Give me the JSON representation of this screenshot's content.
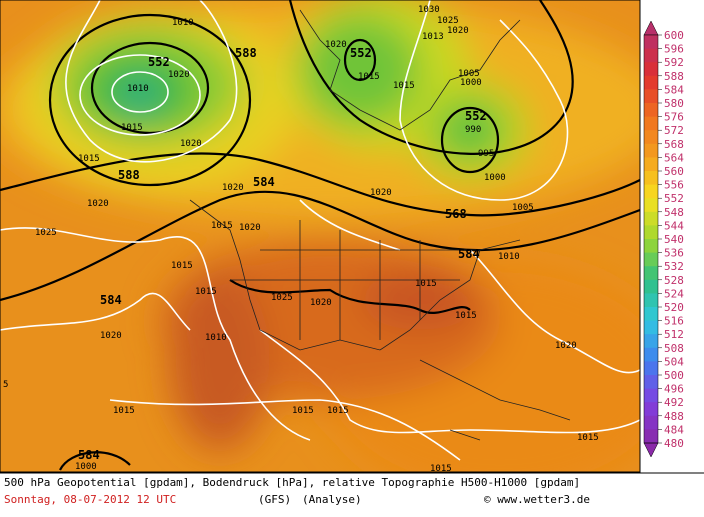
{
  "colorbar": {
    "labels": [
      600,
      596,
      592,
      588,
      584,
      580,
      576,
      572,
      568,
      564,
      560,
      556,
      552,
      548,
      544,
      540,
      536,
      532,
      528,
      524,
      520,
      516,
      512,
      508,
      504,
      500,
      496,
      492,
      488,
      484,
      480
    ]
  },
  "map_labels": {
    "bold": [
      "552",
      "588",
      "588",
      "584",
      "552",
      "552",
      "568",
      "584",
      "584",
      "584"
    ],
    "pressure": [
      "1010",
      "1020",
      "1010",
      "1015",
      "1020",
      "1015",
      "1020",
      "1025",
      "1020",
      "1030",
      "1025",
      "1013",
      "1020",
      "1020",
      "1015",
      "1015",
      "1005",
      "1000",
      "990",
      "995",
      "1000",
      "1005",
      "1020",
      "1015",
      "1020",
      "1015",
      "1015",
      "1025",
      "1020",
      "1015",
      "1015",
      "1010",
      "1020",
      "1010",
      "1020",
      "1015",
      "1015",
      "1015",
      "1015",
      "1015",
      "1000",
      "5"
    ]
  },
  "footer": {
    "line1": "500 hPa Geopotential [gpdam], Bodendruck [hPa], relative Topographie H500-H1000 [gpdam]",
    "date": "Sonntag, 08-07-2012  12 UTC",
    "model": "(GFS)",
    "run": "(Analyse)",
    "credit": "© www.wetter3.de"
  }
}
